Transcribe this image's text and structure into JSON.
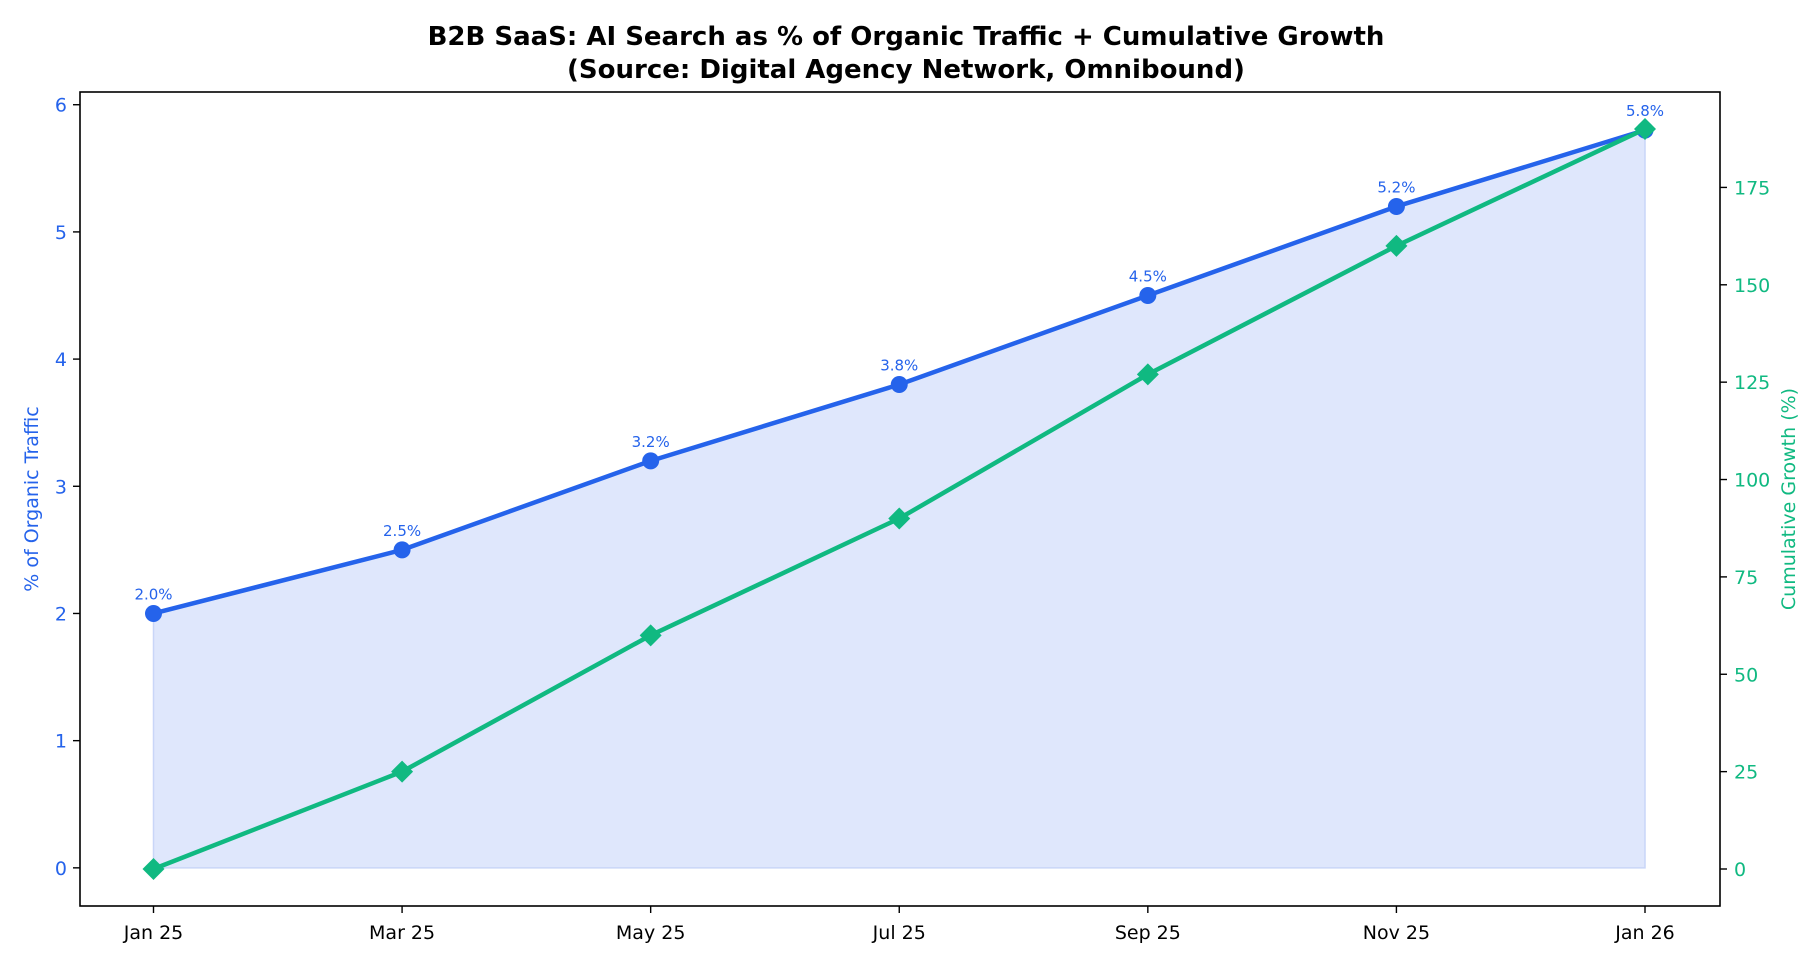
{
  "chart_data": {
    "type": "line",
    "title": "B2B SaaS: AI Search as % of Organic Traffic + Cumulative Growth",
    "subtitle": "(Source: Digital Agency Network, Omnibound)",
    "categories": [
      "Jan 25",
      "Mar 25",
      "May 25",
      "Jul 25",
      "Sep 25",
      "Nov 25",
      "Jan 26"
    ],
    "series": [
      {
        "name": "",
        "axis": "left",
        "values": [
          2.0,
          2.5,
          3.2,
          3.8,
          4.5,
          5.2,
          5.8
        ],
        "data_labels": [
          "2.0%",
          "2.5%",
          "3.2%",
          "3.8%",
          "4.5%",
          "5.2%",
          "5.8%"
        ],
        "marker": "circle",
        "fill_area": true,
        "color": "#2563eb",
        "fill_color": "#dfe7fc"
      },
      {
        "name": "",
        "axis": "right",
        "values": [
          0,
          25,
          60,
          90,
          127,
          160,
          190
        ],
        "marker": "diamond",
        "color": "#10b981"
      }
    ],
    "y_left": {
      "label": "% of Organic Traffic",
      "ylim": [
        -0.3,
        6.1
      ],
      "ticks": [
        0,
        1,
        2,
        3,
        4,
        5,
        6
      ],
      "tick_labels": [
        "0",
        "1",
        "2",
        "3",
        "4",
        "5",
        "6"
      ],
      "color": "#2563eb"
    },
    "y_right": {
      "label": "Cumulative Growth (%)",
      "ylim": [
        -9.5,
        199.5
      ],
      "ticks": [
        0,
        25,
        50,
        75,
        100,
        125,
        150,
        175
      ],
      "tick_labels": [
        "0",
        "25",
        "50",
        "75",
        "100",
        "125",
        "150",
        "175"
      ],
      "color": "#10b981"
    },
    "xlabel": "",
    "grid": false,
    "legend": "none"
  }
}
